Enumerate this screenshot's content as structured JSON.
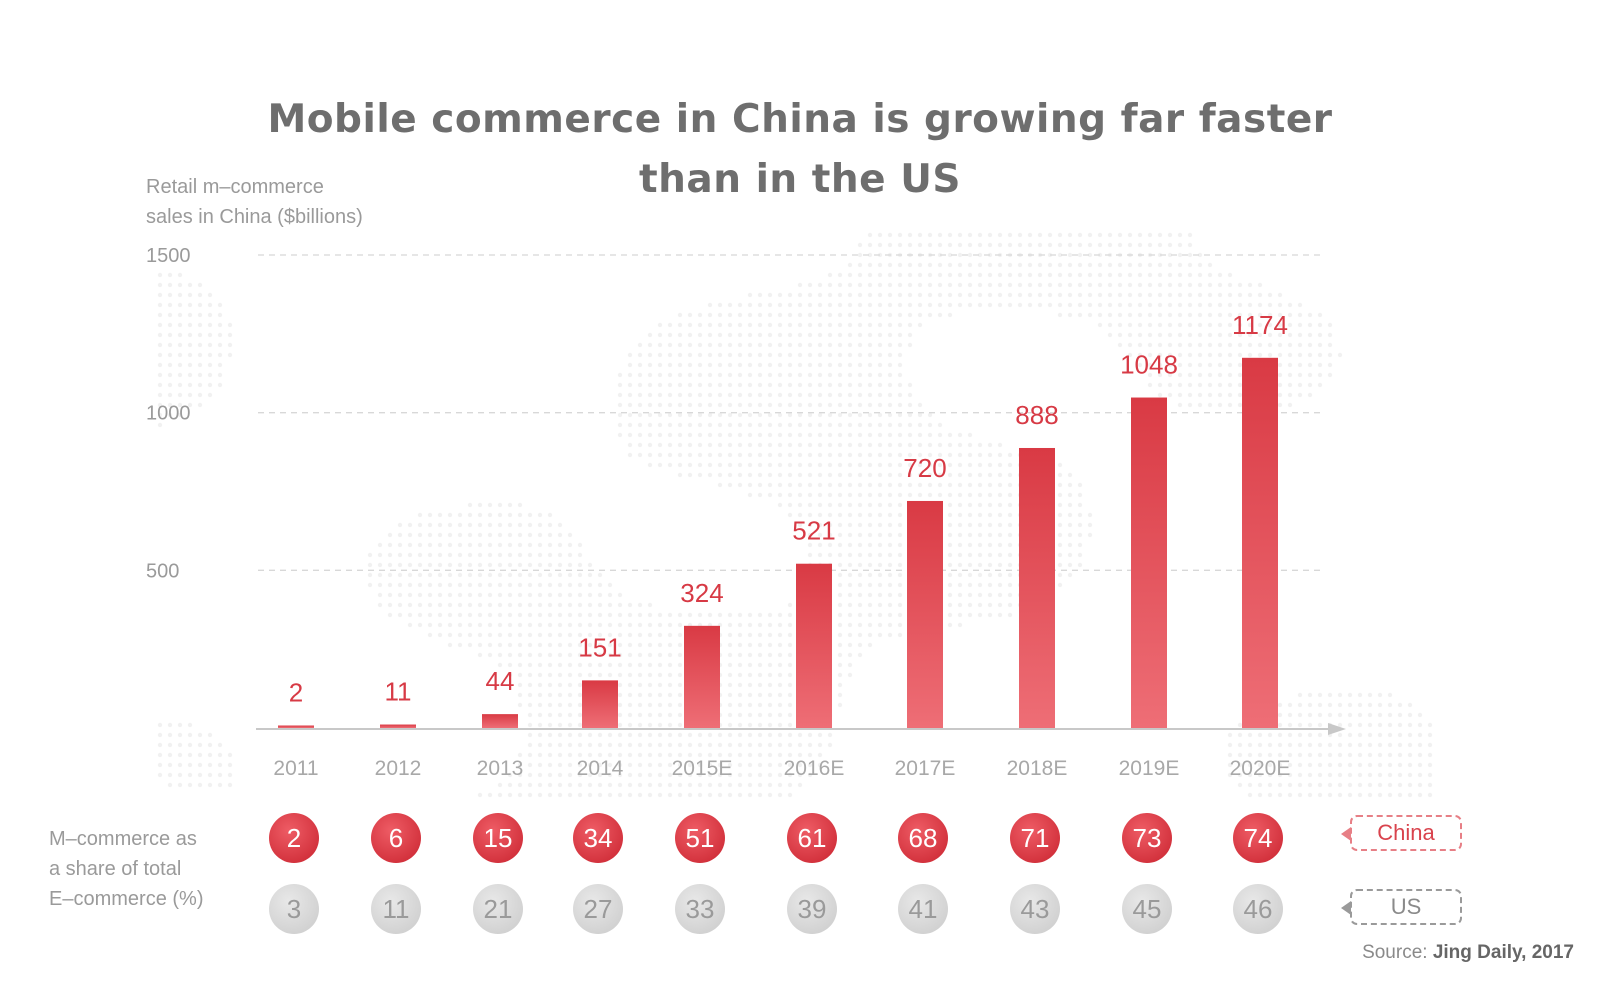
{
  "title_line1": "Mobile commerce in China is growing far faster",
  "title_line2": "than in the US",
  "ylabel_line1": "Retail m–commerce",
  "ylabel_line2": "sales in China ($billions)",
  "share_label_line1": "M–commerce as",
  "share_label_line2": "a share of total",
  "share_label_line3": "E–commerce (%)",
  "legend": {
    "china": "China",
    "us": "US"
  },
  "source_prefix": "Source:",
  "source_name": "Jing Daily, 2017",
  "colors": {
    "bar": "#e0454f",
    "china_circle": "#e0454f",
    "us_circle": "#d6d6d6",
    "text": "#6e6e6e"
  },
  "chart_data": {
    "type": "bar",
    "categories": [
      "2011",
      "2012",
      "2013",
      "2014",
      "2015E",
      "2016E",
      "2017E",
      "2018E",
      "2019E",
      "2020E"
    ],
    "values": [
      2,
      11,
      44,
      151,
      324,
      521,
      720,
      888,
      1048,
      1174
    ],
    "title": "Mobile commerce in China is growing far faster than in the US",
    "ylabel": "Retail m–commerce sales in China ($billions)",
    "yticks": [
      500,
      1000,
      1500
    ],
    "grid": true,
    "share_series": [
      {
        "name": "China",
        "values": [
          2,
          6,
          15,
          34,
          51,
          61,
          68,
          71,
          73,
          74
        ]
      },
      {
        "name": "US",
        "values": [
          3,
          11,
          21,
          27,
          33,
          39,
          41,
          43,
          45,
          46
        ]
      }
    ]
  }
}
